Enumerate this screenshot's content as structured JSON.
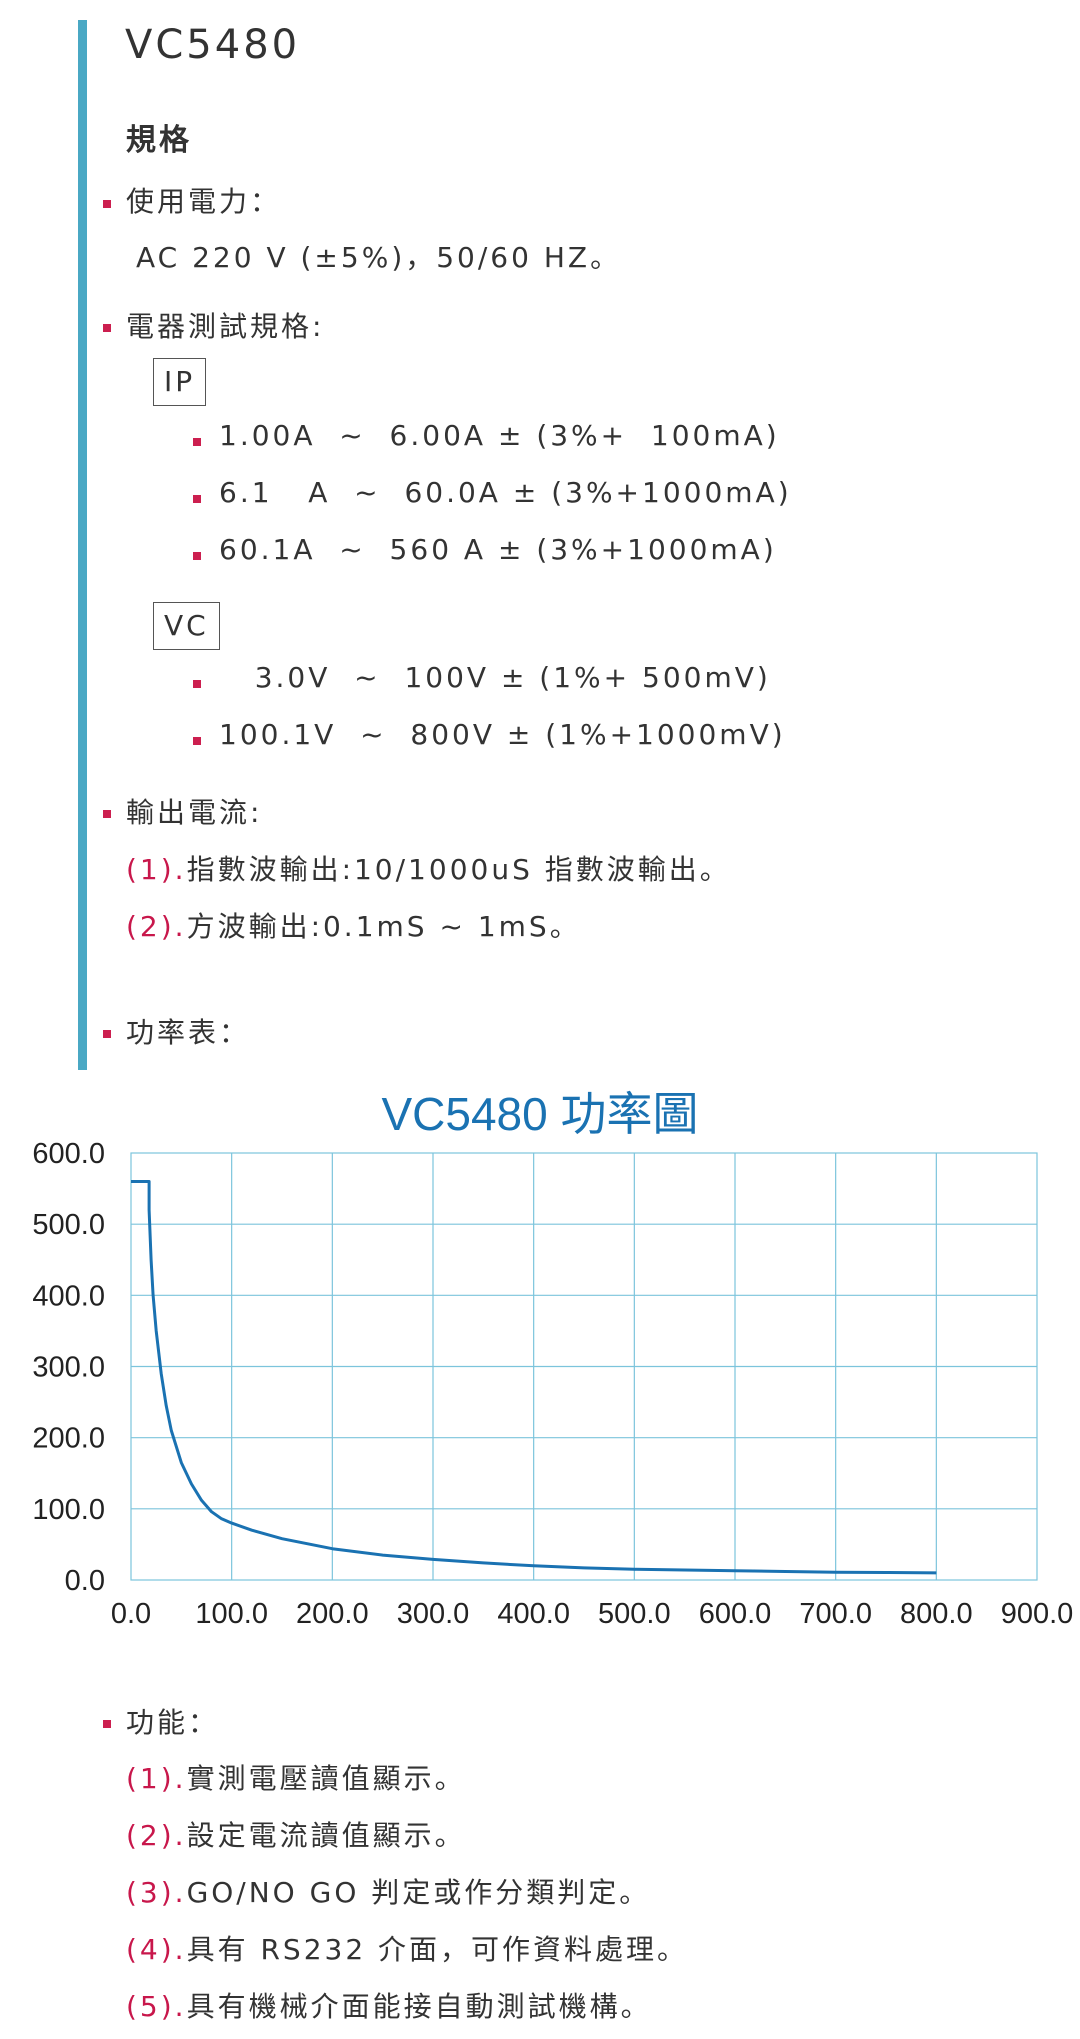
{
  "header": {
    "title": "VC5480",
    "subtitle": "規格"
  },
  "spec": {
    "power": {
      "label": "使用電力：",
      "value": "AC 220 V (±5%)，50/60 HZ。"
    },
    "electrical": {
      "label": "電器測試規格:",
      "ip": {
        "tag": "IP",
        "items": [
          "1.00A  ~  6.00A ± (3%+  100mA)",
          "6.1   A  ~  60.0A ± (3%+1000mA)",
          "60.1A  ~  560 A ± (3%+1000mA)"
        ]
      },
      "vc": {
        "tag": "VC",
        "items": [
          "   3.0V  ~  100V ± (1%+ 500mV)",
          "100.1V  ~  800V ± (1%+1000mV)"
        ]
      }
    },
    "output": {
      "label": "輸出電流:",
      "items": [
        {
          "num": "(1).",
          "text": "指數波輸出:10/1000uS 指數波輸出。"
        },
        {
          "num": "(2).",
          "text": "方波輸出:0.1mS ~ 1mS。"
        }
      ]
    },
    "power_meter": {
      "label": "功率表："
    }
  },
  "chart_data": {
    "type": "line",
    "title": "VC5480 功率圖",
    "xlabel": "",
    "ylabel": "",
    "xlim": [
      0,
      900
    ],
    "ylim": [
      0,
      600
    ],
    "x_ticks": [
      "0.0",
      "100.0",
      "200.0",
      "300.0",
      "400.0",
      "500.0",
      "600.0",
      "700.0",
      "800.0",
      "900.0"
    ],
    "y_ticks": [
      "0.0",
      "100.0",
      "200.0",
      "300.0",
      "400.0",
      "500.0",
      "600.0"
    ],
    "grid": true,
    "line_color": "#1a72b2",
    "grid_color": "#7cc4dc",
    "series": [
      {
        "x": [
          0,
          18,
          18,
          20,
          22,
          25,
          30,
          35,
          40,
          50,
          60,
          70,
          80,
          90,
          100,
          120,
          150,
          200,
          250,
          300,
          350,
          400,
          450,
          500,
          550,
          600,
          650,
          700,
          750,
          800
        ],
        "y": [
          560,
          560,
          520,
          450,
          400,
          350,
          290,
          245,
          210,
          165,
          135,
          112,
          96,
          86,
          80,
          70,
          58,
          44,
          35,
          29,
          24,
          20,
          17,
          15,
          14,
          13,
          12,
          11,
          10.5,
          10
        ]
      }
    ]
  },
  "features": {
    "label": "功能：",
    "items": [
      {
        "num": "(1).",
        "text": "實測電壓讀值顯示。"
      },
      {
        "num": "(2).",
        "text": "設定電流讀值顯示。"
      },
      {
        "num": "(3).",
        "text": "GO/NO GO 判定或作分類判定。"
      },
      {
        "num": "(4).",
        "text": "具有 RS232 介面，可作資料處理。"
      },
      {
        "num": "(5).",
        "text": "具有機械介面能接自動測試機構。"
      }
    ]
  }
}
